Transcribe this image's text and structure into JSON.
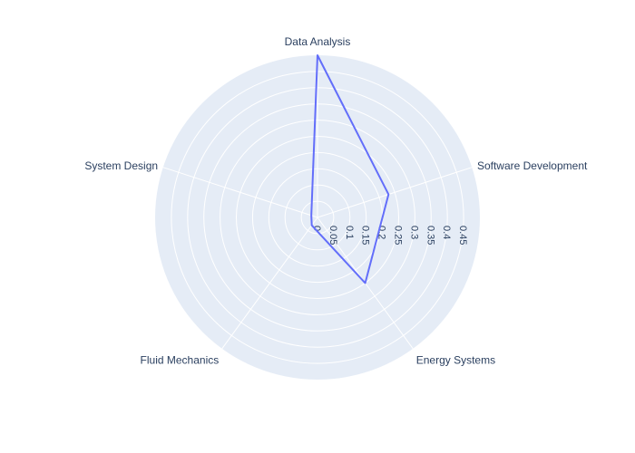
{
  "chart_data": {
    "type": "radar",
    "categories": [
      "Data Analysis",
      "Software Development",
      "Energy Systems",
      "Fluid Mechanics",
      "System Design"
    ],
    "series": [
      {
        "values": [
          0.5,
          0.23,
          0.25,
          0.03,
          0.02
        ]
      }
    ],
    "radial_range": [
      0,
      0.5
    ],
    "radial_ticks": [
      "0",
      "0.05",
      "0.1",
      "0.15",
      "0.2",
      "0.25",
      "0.3",
      "0.35",
      "0.4",
      "0.45"
    ],
    "title": "",
    "grid": true,
    "legend": "none"
  },
  "colors": {
    "polar_background": "#e5ecf6",
    "grid": "#ffffff",
    "series_line": "#636efa",
    "text": "#2a3f5f"
  }
}
